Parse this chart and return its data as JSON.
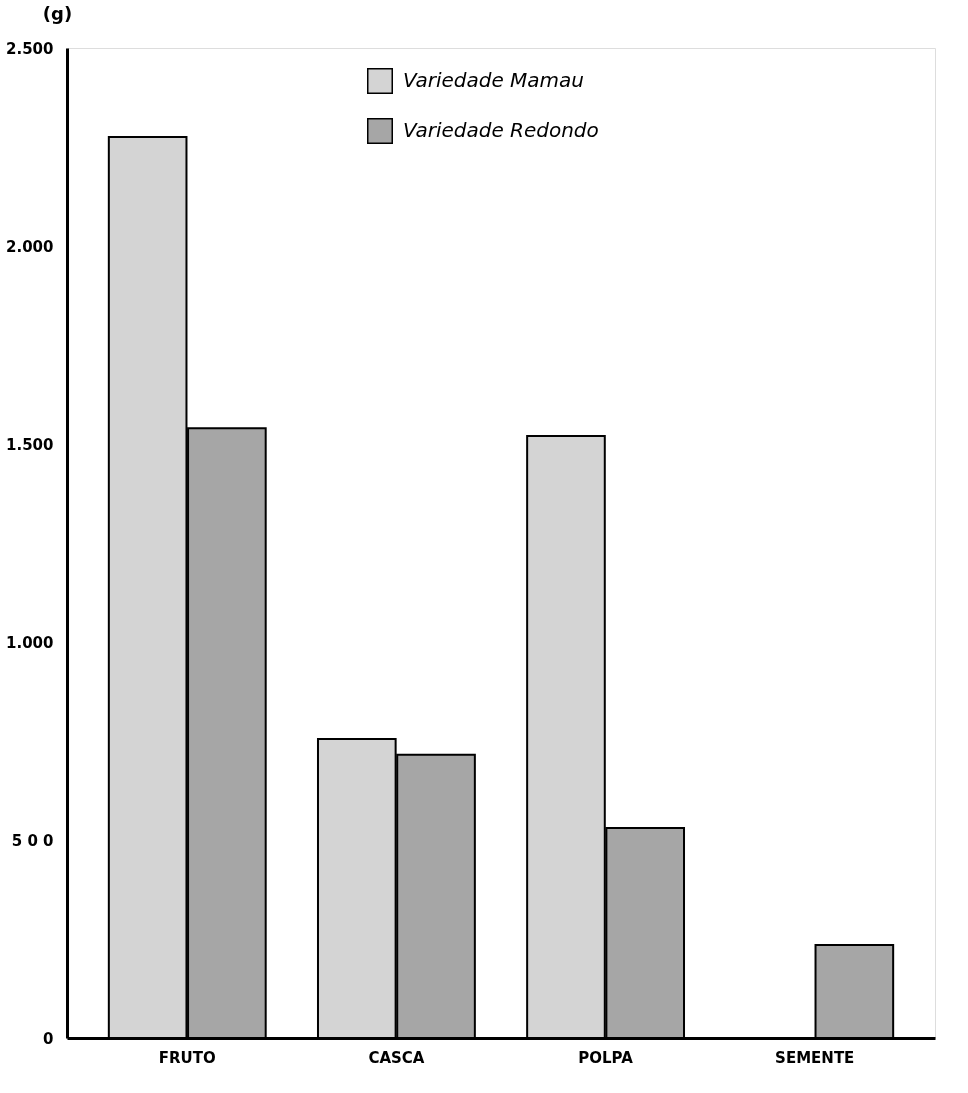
{
  "chart_data": {
    "type": "bar",
    "ylabel": "(g)",
    "categories": [
      "FRUTO",
      "CASCA",
      "POLPA",
      "SEMENTE"
    ],
    "series": [
      {
        "name": "Variedade Mamau",
        "color": "#d4d4d4",
        "values": [
          2275,
          755,
          1520,
          null
        ]
      },
      {
        "name": "Variedade Redondo",
        "color": "#a6a6a6",
        "values": [
          1540,
          715,
          530,
          235
        ]
      }
    ],
    "ylim": [
      0,
      2500
    ],
    "yticks": [
      0,
      {
        "value": 500,
        "label": "5 0 0"
      },
      {
        "value": 1000,
        "label": "1.000"
      },
      {
        "value": 1500,
        "label": "1.500"
      },
      {
        "value": 2000,
        "label": "2.000"
      },
      {
        "value": 2500,
        "label": "2.500"
      }
    ],
    "grid": false,
    "legend": "top"
  }
}
